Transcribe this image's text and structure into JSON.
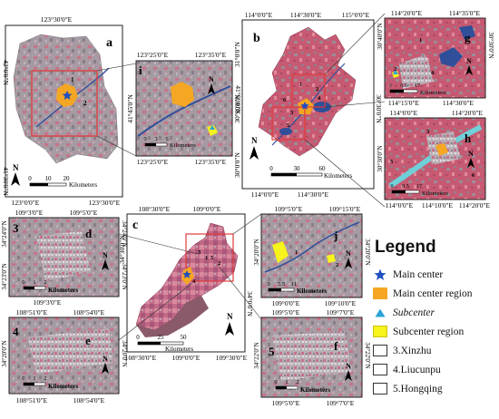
{
  "colors": {
    "main_center": "#1f4fbf",
    "main_center_region": "#f5a623",
    "subcenter": "#2aa3d6",
    "subcenter_region": "#f7f31c",
    "imagery_red": "#c9566f",
    "imagery_gray": "#9a8f98",
    "water": "#2f4f9a",
    "boundary_box": "#e23b3b"
  },
  "legend": {
    "title": "Legend",
    "items": [
      {
        "label": "Main center",
        "symbol": "star-icon"
      },
      {
        "label": "Main center region",
        "symbol": "orange-swatch"
      },
      {
        "label": "Subcenter",
        "symbol": "triangle-icon"
      },
      {
        "label": "Subcenter region",
        "symbol": "yellow-swatch"
      },
      {
        "label": "3.Xinzhu",
        "symbol": "empty-box"
      },
      {
        "label": "4.Liucunpu",
        "symbol": "empty-box"
      },
      {
        "label": "5.Hongqing",
        "symbol": "empty-box"
      }
    ]
  },
  "panels": {
    "a": {
      "letter": "a",
      "north": "N",
      "top_lon": "123°30'0\"E",
      "bottom_lons": [
        "123°0'0\"E",
        "123°30'0\"E"
      ],
      "left_lats": [
        "42°0'0\"N",
        "41°30'0\"N"
      ],
      "scale_ticks": [
        "0",
        "10",
        "20"
      ],
      "scale_unit": "Kilometers",
      "sub_labels": [
        "1",
        "2"
      ]
    },
    "i": {
      "letter": "i",
      "top_lons": [
        "123°25'0\"E",
        "123°35'0\"E"
      ],
      "bottom_lons": [
        "123°25'0\"E",
        "123°35'0\"E"
      ],
      "left_lat": "41°45'0\"N",
      "right_lat": "41°50'0\"N",
      "scale_ticks": [
        "0",
        "3",
        "6"
      ],
      "scale_unit": "Kilometers",
      "north": "N"
    },
    "b": {
      "letter": "b",
      "top_lons": [
        "114°0'0\"E",
        "114°30'0\"E",
        "115°0'0\"E"
      ],
      "bottom_lons": [
        "114°0'0\"E",
        "114°30'0\"E"
      ],
      "left_lats": [
        "31°0'0\"N",
        "30°30'0\"N",
        "30°0'0\"N"
      ],
      "right_lat": "30°30'0\"N",
      "scale_ticks": [
        "0",
        "30",
        "60"
      ],
      "scale_unit": "Kilometers",
      "north": "N",
      "sub_labels": [
        "1",
        "2",
        "3",
        "4",
        "5",
        "6"
      ]
    },
    "g": {
      "letter": "g",
      "top_lons": [
        "114°20'0\"E",
        "114°35'0\"E"
      ],
      "bottom_lons": [
        "114°15'0\"E",
        "114°30'0\"E"
      ],
      "left_lat": "30°40'0\"N",
      "right_lat": "30°30'0\"N",
      "scale_ticks": [
        "0",
        "8.5",
        "17"
      ],
      "scale_unit": "Kilometers",
      "north": "N",
      "sub_labels": [
        "1",
        "2",
        "4"
      ]
    },
    "h": {
      "letter": "h",
      "top_lons": [
        "114°0'0\"E",
        "114°20'0\"E"
      ],
      "bottom_lons": [
        "114°0'0\"E",
        "114°10'0\"E",
        "114°20'0\"E"
      ],
      "left_lat": "30°30'0\"N",
      "scale_ticks": [
        "0",
        "8.5",
        "17"
      ],
      "scale_unit": "Kilometers",
      "north": "N",
      "sub_labels": [
        "3",
        "5",
        "6"
      ]
    },
    "c": {
      "letter": "c",
      "top_lons": [
        "108°30'0\"E",
        "109°0'0\"E"
      ],
      "bottom_lons": [
        "108°30'0\"E",
        "109°0'0\"E",
        "109°30'0\"E"
      ],
      "left_lat": "34°30'0\"N",
      "right_lat": "34°0'0\"N",
      "scale_ticks": [
        "0",
        "25",
        "50"
      ],
      "scale_unit": "Kilometers",
      "north": "N",
      "sub_labels": [
        "3",
        "1",
        "5",
        "2",
        "4"
      ]
    },
    "d": {
      "number": "3",
      "letter": "d",
      "top_lons": [
        "109°3'0\"E",
        "109°5'0\"E"
      ],
      "bottom_lon": "109°3'0\"E",
      "left_lats": [
        "34°24'0\"N",
        "34°23'0\"N"
      ],
      "right_lats": [
        "34°24'0\"N",
        "34°23'0\"N"
      ],
      "scale_ticks": [
        "0",
        "1",
        "2"
      ],
      "scale_unit": "Kilometers",
      "north": "N"
    },
    "e": {
      "number": "4",
      "letter": "e",
      "top_lons": [
        "108°51'0\"E",
        "108°54'0\"E"
      ],
      "bottom_lons": [
        "108°51'0\"E",
        "108°54'0\"E"
      ],
      "left_lat": "34°20'0\"N",
      "right_lat": "34°20'0\"N",
      "scale_ticks": [
        "0",
        "1",
        "2"
      ],
      "scale_unit": "Kilometers",
      "north": "N"
    },
    "j": {
      "letter": "j",
      "top_lons": [
        "109°5'0\"E",
        "109°15'0\"E"
      ],
      "bottom_lons": [
        "109°0'0\"E",
        "109°10'0\"E"
      ],
      "left_lat": "34°20'0\"N",
      "right_lat": "34°20'0\"N",
      "scale_ticks": [
        "0",
        "5.5",
        "11"
      ],
      "scale_unit": "Kilometers",
      "north": "N",
      "sub_labels": [
        "1",
        "2"
      ]
    },
    "f": {
      "number": "5",
      "letter": "f",
      "top_lons": [
        "109°5'0\"E",
        "109°7'0\"E"
      ],
      "bottom_lons": [
        "109°5'0\"E",
        "109°7'0\"E"
      ],
      "left_lat": "34°22'0\"N",
      "right_lat": "34°22'0\"N",
      "scale_ticks": [
        "0",
        "1",
        "2"
      ],
      "scale_unit": "Kilometers",
      "north": "N"
    }
  }
}
